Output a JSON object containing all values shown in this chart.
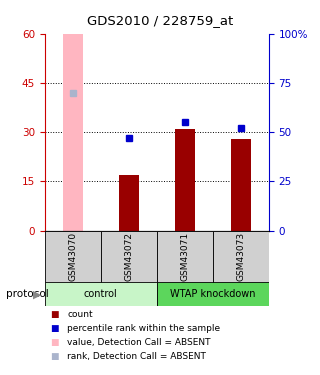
{
  "title": "GDS2010 / 228759_at",
  "samples": [
    "GSM43070",
    "GSM43072",
    "GSM43071",
    "GSM43073"
  ],
  "bar_values": [
    0,
    17,
    31,
    28
  ],
  "absent_bar_value": 60,
  "absent_bar_idx": 0,
  "absent_bar_color": "#ffb6c1",
  "bar_color": "#990000",
  "rank_values": [
    70,
    47,
    55,
    52
  ],
  "rank_absent_idx": 0,
  "rank_color": "#0000cc",
  "rank_absent_color": "#aab4cc",
  "ylim_left": [
    0,
    60
  ],
  "ylim_right": [
    0,
    100
  ],
  "yticks_left": [
    0,
    15,
    30,
    45,
    60
  ],
  "yticks_right": [
    0,
    25,
    50,
    75,
    100
  ],
  "ytick_labels_right": [
    "0",
    "25",
    "50",
    "75",
    "100%"
  ],
  "left_axis_color": "#cc0000",
  "right_axis_color": "#0000cc",
  "dotted_grid_values": [
    15,
    30,
    45
  ],
  "bar_width": 0.35,
  "group_light_color": "#c8f5c8",
  "group_dark_color": "#5cd65c",
  "sample_bg_color": "#d0d0d0",
  "legend_items": [
    {
      "color": "#990000",
      "label": "count"
    },
    {
      "color": "#0000cc",
      "label": "percentile rank within the sample"
    },
    {
      "color": "#ffb6c1",
      "label": "value, Detection Call = ABSENT"
    },
    {
      "color": "#aab4cc",
      "label": "rank, Detection Call = ABSENT"
    }
  ]
}
